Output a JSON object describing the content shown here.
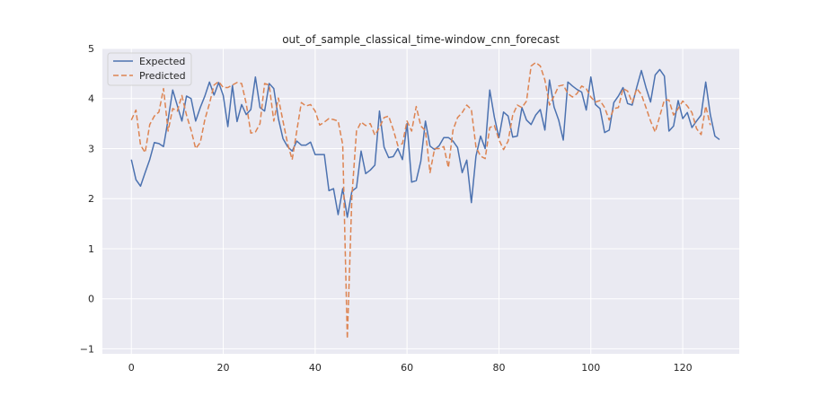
{
  "chart_data": {
    "type": "line",
    "title": "out_of_sample_classical_time-window_cnn_forecast",
    "xlabel": "",
    "ylabel": "",
    "xlim": [
      -6.3,
      132.3
    ],
    "ylim": [
      -1.1,
      5.0
    ],
    "xticks": [
      0,
      20,
      40,
      60,
      80,
      100,
      120
    ],
    "yticks": [
      -1,
      0,
      1,
      2,
      3,
      4,
      5
    ],
    "grid": true,
    "legend_position": "top-left",
    "colors": {
      "background": "#eaeaf2",
      "grid": "#ffffff",
      "expected": "#4c72b0",
      "predicted": "#dd8452"
    },
    "series": [
      {
        "name": "Expected",
        "style": "solid",
        "values": [
          2.78,
          2.38,
          2.25,
          2.52,
          2.78,
          3.12,
          3.1,
          3.04,
          3.58,
          4.17,
          3.86,
          3.55,
          4.05,
          4.0,
          3.55,
          3.82,
          4.05,
          4.33,
          4.07,
          4.32,
          4.06,
          3.44,
          4.26,
          3.54,
          3.88,
          3.68,
          3.78,
          4.43,
          3.82,
          3.75,
          4.3,
          4.2,
          3.6,
          3.2,
          3.04,
          2.95,
          3.15,
          3.07,
          3.07,
          3.13,
          2.88,
          2.88,
          2.88,
          2.16,
          2.2,
          1.68,
          2.2,
          1.63,
          2.15,
          2.22,
          2.95,
          2.5,
          2.57,
          2.67,
          3.75,
          3.03,
          2.82,
          2.84,
          3.0,
          2.78,
          3.5,
          2.33,
          2.36,
          2.75,
          3.55,
          3.05,
          2.98,
          3.06,
          3.22,
          3.22,
          3.15,
          3.02,
          2.52,
          2.77,
          1.92,
          2.85,
          3.25,
          3.0,
          4.17,
          3.63,
          3.22,
          3.73,
          3.65,
          3.23,
          3.25,
          3.82,
          3.57,
          3.48,
          3.67,
          3.78,
          3.37,
          4.37,
          3.83,
          3.57,
          3.17,
          4.33,
          4.25,
          4.18,
          4.13,
          3.77,
          4.43,
          3.88,
          3.8,
          3.32,
          3.37,
          3.92,
          4.05,
          4.22,
          3.9,
          3.87,
          4.23,
          4.56,
          4.22,
          3.93,
          4.47,
          4.58,
          4.45,
          3.35,
          3.45,
          3.96,
          3.6,
          3.72,
          3.42,
          3.55,
          3.67,
          4.33,
          3.68,
          3.25,
          3.18
        ],
        "x_start": 0
      },
      {
        "name": "Predicted",
        "style": "dashed",
        "values": [
          3.57,
          3.77,
          3.07,
          2.92,
          3.48,
          3.65,
          3.73,
          4.2,
          3.35,
          3.8,
          3.75,
          4.06,
          3.67,
          3.37,
          3.0,
          3.12,
          3.58,
          3.9,
          4.27,
          4.34,
          4.22,
          4.22,
          4.27,
          4.32,
          4.3,
          3.9,
          3.31,
          3.33,
          3.5,
          4.3,
          4.27,
          3.55,
          4.01,
          3.55,
          3.1,
          2.78,
          3.35,
          3.92,
          3.85,
          3.88,
          3.75,
          3.47,
          3.53,
          3.6,
          3.58,
          3.55,
          3.08,
          -0.8,
          2.05,
          3.35,
          3.53,
          3.46,
          3.5,
          3.27,
          3.42,
          3.62,
          3.65,
          3.38,
          3.06,
          3.1,
          3.55,
          3.35,
          3.84,
          3.45,
          3.36,
          2.52,
          3.0,
          3.0,
          3.04,
          2.62,
          3.37,
          3.62,
          3.72,
          3.87,
          3.78,
          3.03,
          2.85,
          2.8,
          3.42,
          3.46,
          3.18,
          2.98,
          3.15,
          3.67,
          3.87,
          3.82,
          3.95,
          4.65,
          4.72,
          4.65,
          4.37,
          3.87,
          4.05,
          4.25,
          4.27,
          4.1,
          4.03,
          4.1,
          4.25,
          4.2,
          4.03,
          3.93,
          3.96,
          3.82,
          3.57,
          3.8,
          3.82,
          4.2,
          4.15,
          3.92,
          4.2,
          4.08,
          3.82,
          3.55,
          3.33,
          3.65,
          3.97,
          3.97,
          3.67,
          3.8,
          3.95,
          3.85,
          3.72,
          3.4,
          3.28,
          3.85,
          3.47
        ],
        "x_start": 0
      }
    ]
  }
}
